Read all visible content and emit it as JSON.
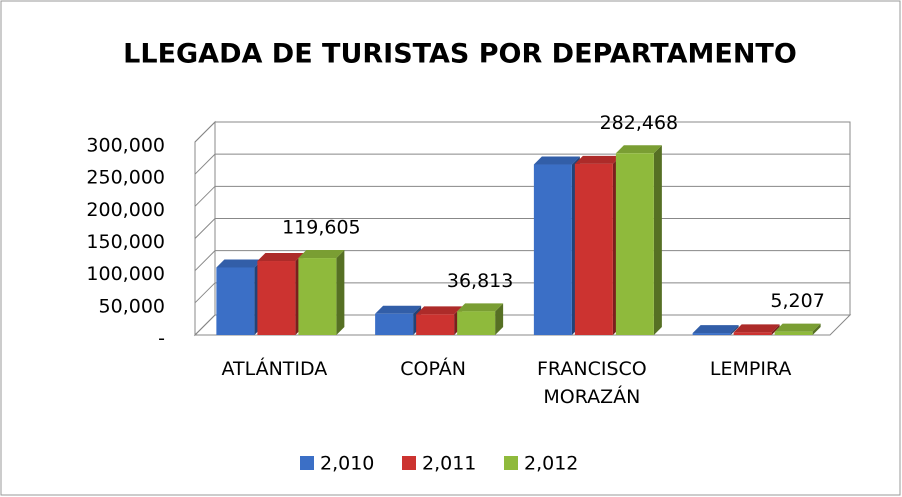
{
  "chart_data": {
    "type": "bar3d",
    "title": "LLEGADA DE TURISTAS  POR DEPARTAMENTO",
    "categories": [
      "ATLÁNTIDA",
      "COPÁN",
      "FRANCISCO MORAZÁN",
      "LEMPIRA"
    ],
    "series": [
      {
        "name": "2,010",
        "color": "#3b6fc6",
        "values": [
          105000,
          33000,
          265000,
          3000
        ]
      },
      {
        "name": "2,011",
        "color": "#cc3330",
        "values": [
          115000,
          32000,
          266000,
          4000
        ]
      },
      {
        "name": "2,012",
        "color": "#8fba3c",
        "values": [
          119605,
          36813,
          282468,
          5207
        ],
        "value_labels": [
          "119,605",
          "36,813",
          "282,468",
          "5,207"
        ]
      }
    ],
    "ylim": [
      0,
      300000
    ],
    "yticks": [
      {
        "value": 0,
        "label": "-"
      },
      {
        "value": 50000,
        "label": "50,000"
      },
      {
        "value": 100000,
        "label": "100,000"
      },
      {
        "value": 150000,
        "label": "150,000"
      },
      {
        "value": 200000,
        "label": "200,000"
      },
      {
        "value": 250000,
        "label": "250,000"
      },
      {
        "value": 300000,
        "label": "300,000"
      }
    ],
    "grid": true,
    "legend": "bottom"
  }
}
